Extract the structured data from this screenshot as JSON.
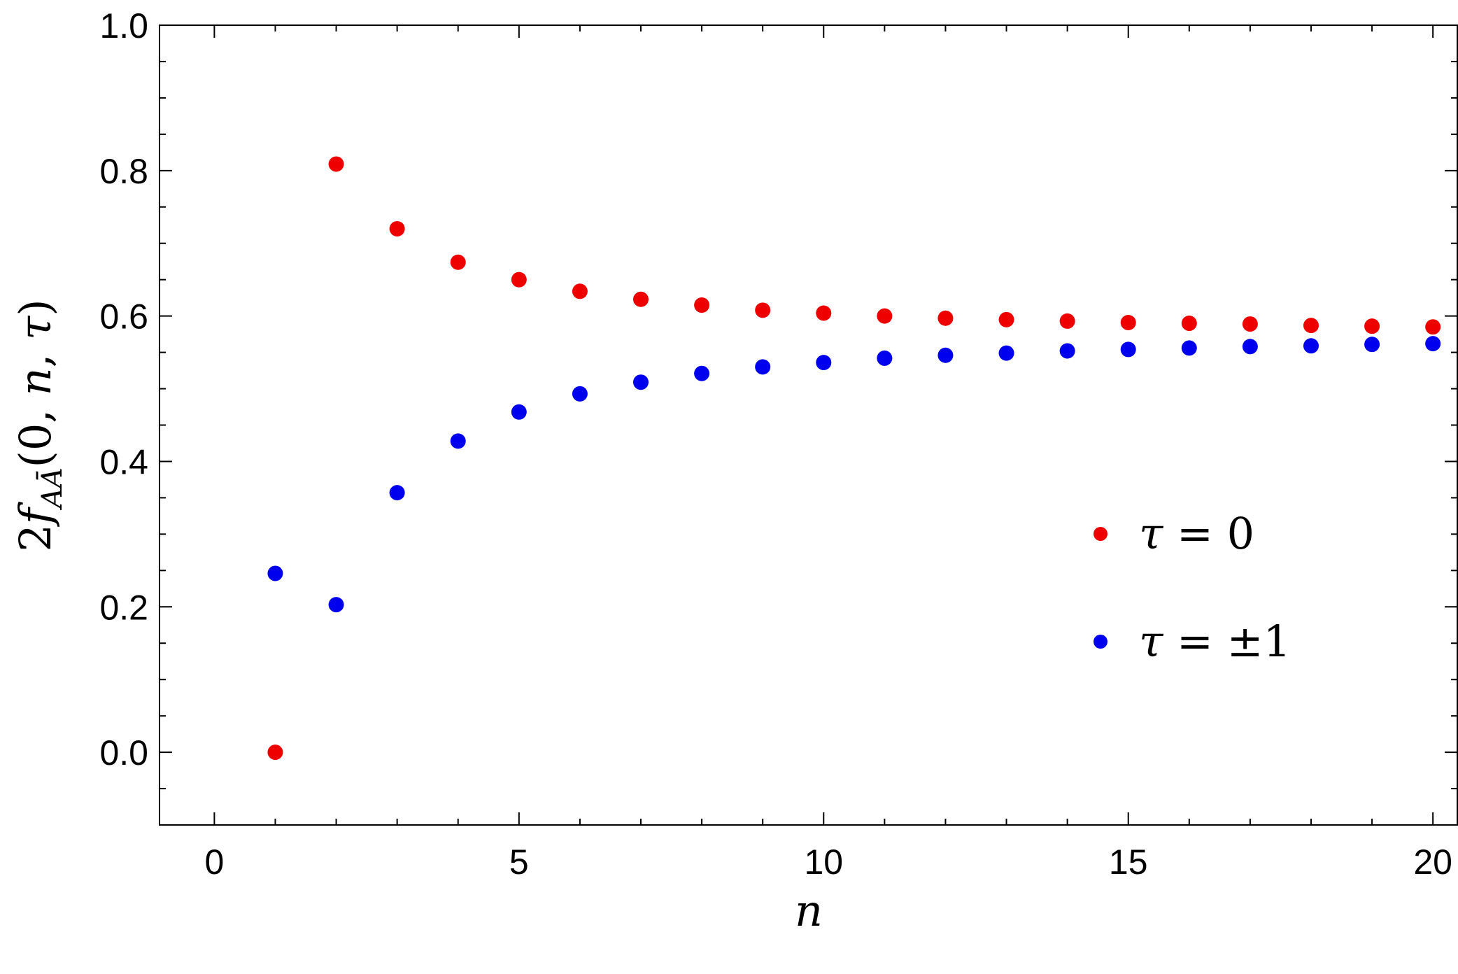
{
  "chart_data": {
    "type": "scatter",
    "title": "",
    "xlabel": "n",
    "ylabel": {
      "prefix": "2",
      "func": "f",
      "subscript": "AĀ",
      "args_open": "(0, ",
      "arg_n": "n",
      "comma": ", ",
      "arg_tau": "τ",
      "args_close": ")"
    },
    "xlim": [
      -0.9,
      20.4
    ],
    "ylim": [
      -0.1,
      1.0
    ],
    "xticks": [
      0,
      5,
      10,
      15,
      20
    ],
    "xtick_labels": [
      "0",
      "5",
      "10",
      "15",
      "20"
    ],
    "yticks": [
      0.0,
      0.2,
      0.4,
      0.6,
      0.8,
      1.0
    ],
    "ytick_labels": [
      "0.0",
      "0.2",
      "0.4",
      "0.6",
      "0.8",
      "1.0"
    ],
    "x_minor_step": 1,
    "y_minor_step": 0.05,
    "grid": false,
    "legend_position": "right",
    "series": [
      {
        "name_tau": "τ",
        "name_rest": " = 0",
        "color": "#ee0000",
        "x": [
          1,
          2,
          3,
          4,
          5,
          6,
          7,
          8,
          9,
          10,
          11,
          12,
          13,
          14,
          15,
          16,
          17,
          18,
          19,
          20
        ],
        "y": [
          0.0,
          0.809,
          0.72,
          0.674,
          0.65,
          0.634,
          0.623,
          0.615,
          0.608,
          0.604,
          0.6,
          0.597,
          0.595,
          0.593,
          0.591,
          0.59,
          0.589,
          0.587,
          0.586,
          0.585
        ]
      },
      {
        "name_tau": "τ",
        "name_rest": " = ±1",
        "color": "#0000ee",
        "x": [
          1,
          2,
          3,
          4,
          5,
          6,
          7,
          8,
          9,
          10,
          11,
          12,
          13,
          14,
          15,
          16,
          17,
          18,
          19,
          20
        ],
        "y": [
          0.246,
          0.203,
          0.357,
          0.428,
          0.468,
          0.493,
          0.509,
          0.521,
          0.53,
          0.536,
          0.542,
          0.546,
          0.549,
          0.552,
          0.554,
          0.556,
          0.558,
          0.559,
          0.561,
          0.562
        ]
      }
    ]
  }
}
